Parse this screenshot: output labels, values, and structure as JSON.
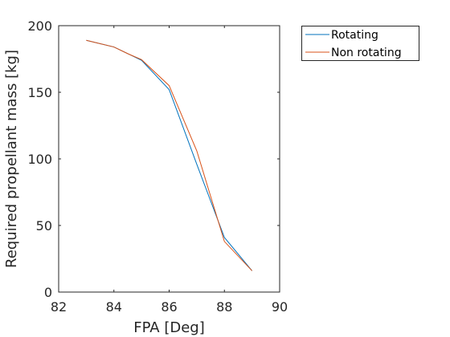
{
  "chart_data": {
    "type": "line",
    "title": "",
    "xlabel": "FPA [Deg]",
    "ylabel": "Required propellant mass [kg]",
    "xlim": [
      82,
      90
    ],
    "ylim": [
      0,
      200
    ],
    "xticks": [
      82,
      84,
      86,
      88,
      90
    ],
    "yticks": [
      0,
      50,
      100,
      150,
      200
    ],
    "grid": false,
    "legend_position": "outside-top-right",
    "series": [
      {
        "name": "Rotating",
        "color": "#0072BD",
        "x": [
          83,
          84,
          84.5,
          85,
          86,
          87,
          88,
          89
        ],
        "y": [
          189,
          184,
          179,
          174,
          152,
          96,
          41,
          16
        ]
      },
      {
        "name": "Non rotating",
        "color": "#D95319",
        "x": [
          83,
          84,
          84.5,
          85,
          86,
          87,
          88,
          89
        ],
        "y": [
          189,
          184,
          179,
          174.5,
          155,
          106,
          38,
          16
        ]
      }
    ]
  }
}
